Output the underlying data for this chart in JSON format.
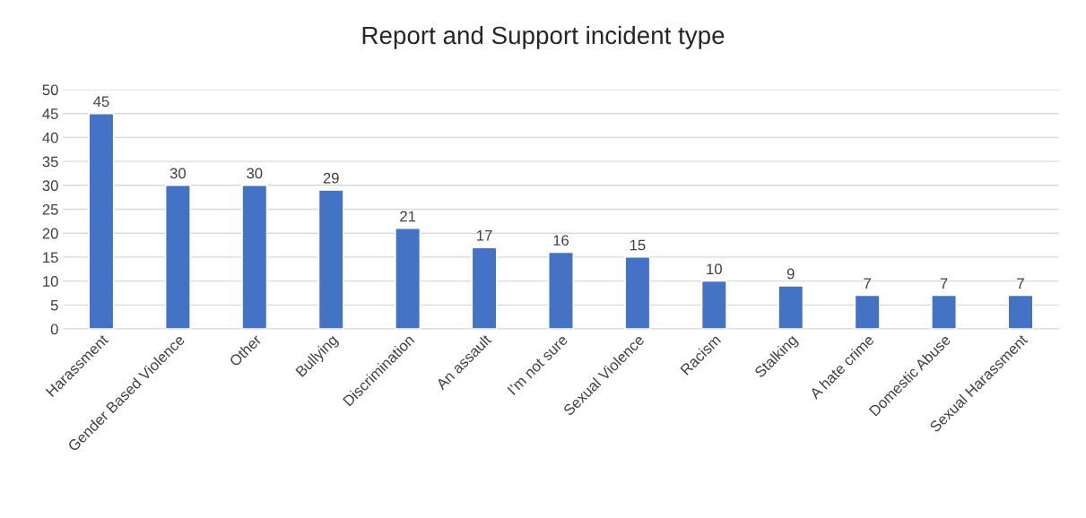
{
  "chart_data": {
    "type": "bar",
    "title": "Report and Support incident type",
    "categories": [
      "Harassment",
      "Gender Based Violence",
      "Other",
      "Bullying",
      "Discrimination",
      "An assault",
      "I’m not sure",
      "Sexual Violence",
      "Racism",
      "Stalking",
      "A hate crime",
      "Domestic Abuse",
      "Sexual Harassment"
    ],
    "values": [
      45,
      30,
      30,
      29,
      21,
      17,
      16,
      15,
      10,
      9,
      7,
      7,
      7
    ],
    "color": "#4472c4",
    "ylim": [
      0,
      50
    ],
    "yticks": [
      0,
      5,
      10,
      15,
      20,
      25,
      30,
      35,
      40,
      45,
      50
    ],
    "grid": "y",
    "data_labels": true
  }
}
